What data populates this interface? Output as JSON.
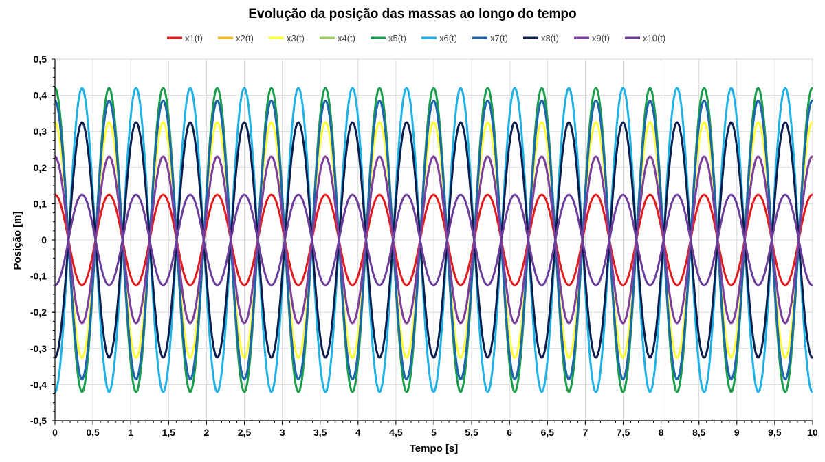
{
  "chart_data": {
    "type": "line",
    "title": "Evolução da posição das massas ao longo do tempo",
    "xlabel": "Tempo [s]",
    "ylabel": "Posição [m]",
    "xlim": [
      0,
      10
    ],
    "ylim": [
      -0.5,
      0.5
    ],
    "x_tick_labels": [
      "0",
      "0,5",
      "1",
      "1,5",
      "2",
      "2,5",
      "3",
      "3,5",
      "4",
      "4,5",
      "5",
      "5,5",
      "6",
      "6,5",
      "7",
      "7,5",
      "8",
      "8,5",
      "9",
      "9,5",
      "10"
    ],
    "y_tick_labels": [
      "0,5",
      "0,4",
      "0,3",
      "0,2",
      "0,1",
      "0",
      "-0,1",
      "-0,2",
      "-0,3",
      "-0,4",
      "-0,5"
    ],
    "grid": true,
    "legend_position": "top",
    "period_s": 0.714,
    "series": [
      {
        "name": "x1(t)",
        "amplitude": 0.125,
        "phase": "cos",
        "color": "#e31a1c"
      },
      {
        "name": "x2(t)",
        "amplitude": 0.23,
        "phase": "cos",
        "color": "#f5b417"
      },
      {
        "name": "x3(t)",
        "amplitude": 0.325,
        "phase": "cos",
        "color": "#ffff33"
      },
      {
        "name": "x4(t)",
        "amplitude": 0.385,
        "phase": "cos",
        "color": "#9ccc65"
      },
      {
        "name": "x5(t)",
        "amplitude": 0.42,
        "phase": "cos",
        "color": "#1b9e4b"
      },
      {
        "name": "x6(t)",
        "amplitude": 0.42,
        "phase": "-cos",
        "color": "#1fb2e6"
      },
      {
        "name": "x7(t)",
        "amplitude": 0.385,
        "phase": "cos",
        "color": "#1f66b0"
      },
      {
        "name": "x8(t)",
        "amplitude": 0.325,
        "phase": "-cos",
        "color": "#0b1f4f"
      },
      {
        "name": "x9(t)",
        "amplitude": 0.23,
        "phase": "cos",
        "color": "#7a3fa0"
      },
      {
        "name": "x10(t)",
        "amplitude": 0.125,
        "phase": "-cos",
        "color": "#6a3d9a"
      }
    ]
  }
}
